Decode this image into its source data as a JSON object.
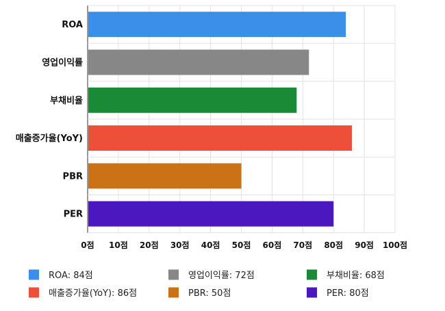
{
  "chart_data": {
    "type": "bar",
    "orientation": "horizontal",
    "categories": [
      "ROA",
      "영업이익률",
      "부채비율",
      "매출증가율(YoY)",
      "PBR",
      "PER"
    ],
    "values": [
      84,
      72,
      68,
      86,
      50,
      80
    ],
    "colors": [
      "#3b8fe8",
      "#878787",
      "#1a8a36",
      "#ee4f38",
      "#cc7216",
      "#4b18bf"
    ],
    "xlim": [
      0,
      100
    ],
    "x_ticks": [
      0,
      10,
      20,
      30,
      40,
      50,
      60,
      70,
      80,
      90,
      100
    ],
    "x_tick_labels": [
      "0점",
      "10점",
      "20점",
      "30점",
      "40점",
      "50점",
      "60점",
      "70점",
      "80점",
      "90점",
      "100점"
    ],
    "grid": true,
    "legend_position": "bottom",
    "legend": [
      {
        "label": "ROA: 84점",
        "color": "#3b8fe8"
      },
      {
        "label": "영업이익률: 72점",
        "color": "#878787"
      },
      {
        "label": "부채비율: 68점",
        "color": "#1a8a36"
      },
      {
        "label": "매출증가율(YoY): 86점",
        "color": "#ee4f38"
      },
      {
        "label": "PBR: 50점",
        "color": "#cc7216"
      },
      {
        "label": "PER: 80점",
        "color": "#4b18bf"
      }
    ]
  }
}
